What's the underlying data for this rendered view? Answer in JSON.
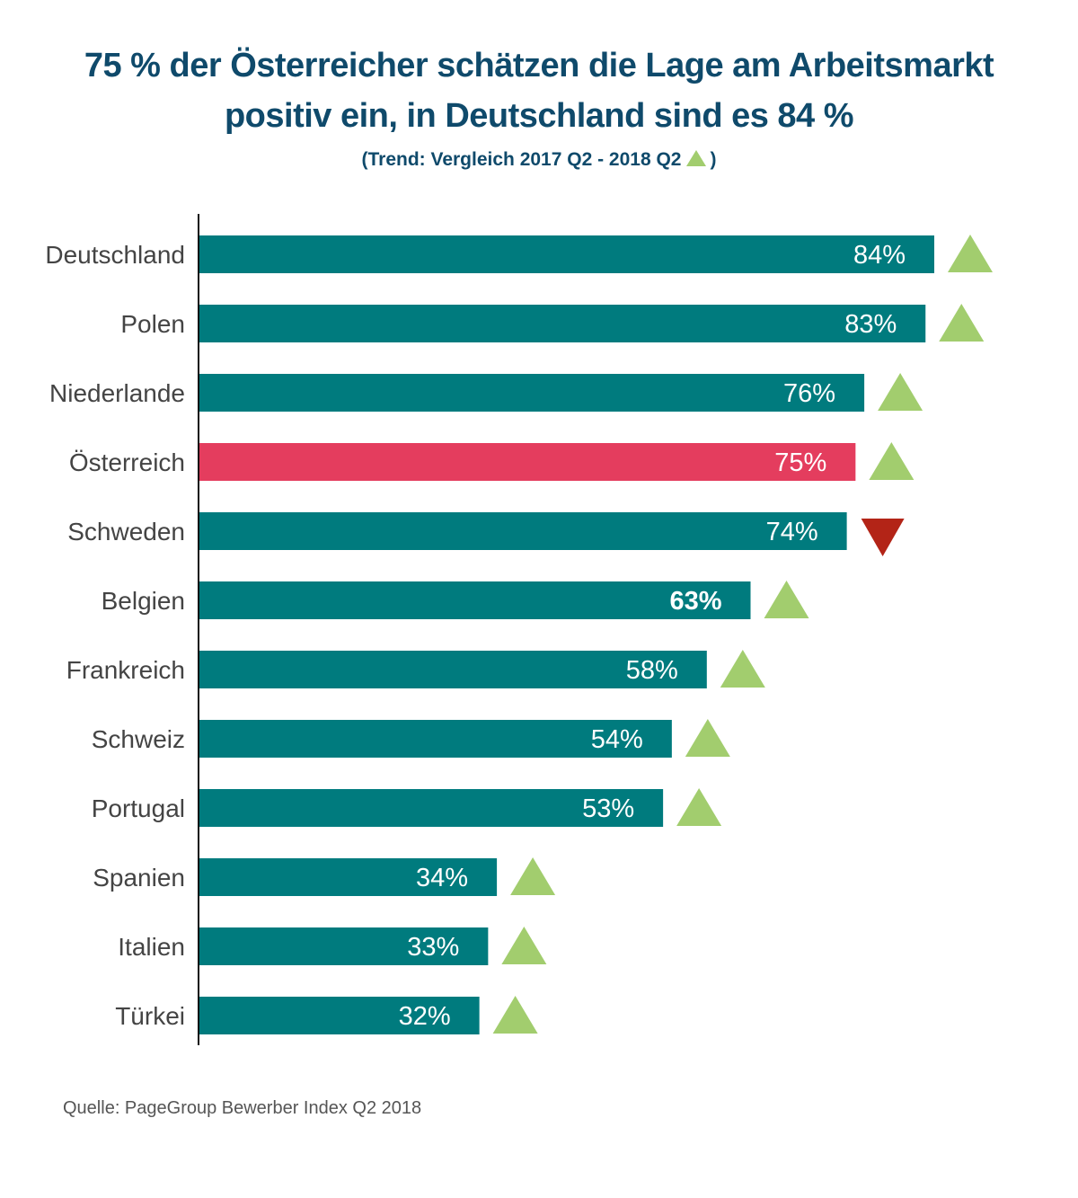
{
  "title_line1": "75 % der Österreicher schätzen die Lage am Arbeitsmarkt",
  "title_line2": "positiv ein, in Deutschland sind es 84 %",
  "subtitle_pre": "(Trend: Vergleich 2017 Q2 - 2018 Q2",
  "subtitle_post": ")",
  "source": "Quelle: PageGroup Bewerber Index Q2 2018",
  "colors": {
    "bar": "#007b7e",
    "highlight": "#e43d5e",
    "trend_up": "#a2cd6e",
    "trend_down": "#b32417",
    "title": "#0f4a6b",
    "label": "#444444"
  },
  "chart_data": {
    "type": "bar",
    "orientation": "horizontal",
    "categories": [
      "Deutschland",
      "Polen",
      "Niederlande",
      "Österreich",
      "Schweden",
      "Belgien",
      "Frankreich",
      "Schweiz",
      "Portugal",
      "Spanien",
      "Italien",
      "Türkei"
    ],
    "values": [
      84,
      83,
      76,
      75,
      74,
      63,
      58,
      54,
      53,
      34,
      33,
      32
    ],
    "value_labels": [
      "84%",
      "83%",
      "76%",
      "75%",
      "74%",
      "63%",
      "58%",
      "54%",
      "53%",
      "34%",
      "33%",
      "32%"
    ],
    "trend": [
      "up",
      "up",
      "up",
      "up",
      "down",
      "up",
      "up",
      "up",
      "up",
      "up",
      "up",
      "up"
    ],
    "highlight": "Österreich",
    "xlim": [
      0,
      84
    ],
    "grid": false,
    "legend": "none"
  }
}
